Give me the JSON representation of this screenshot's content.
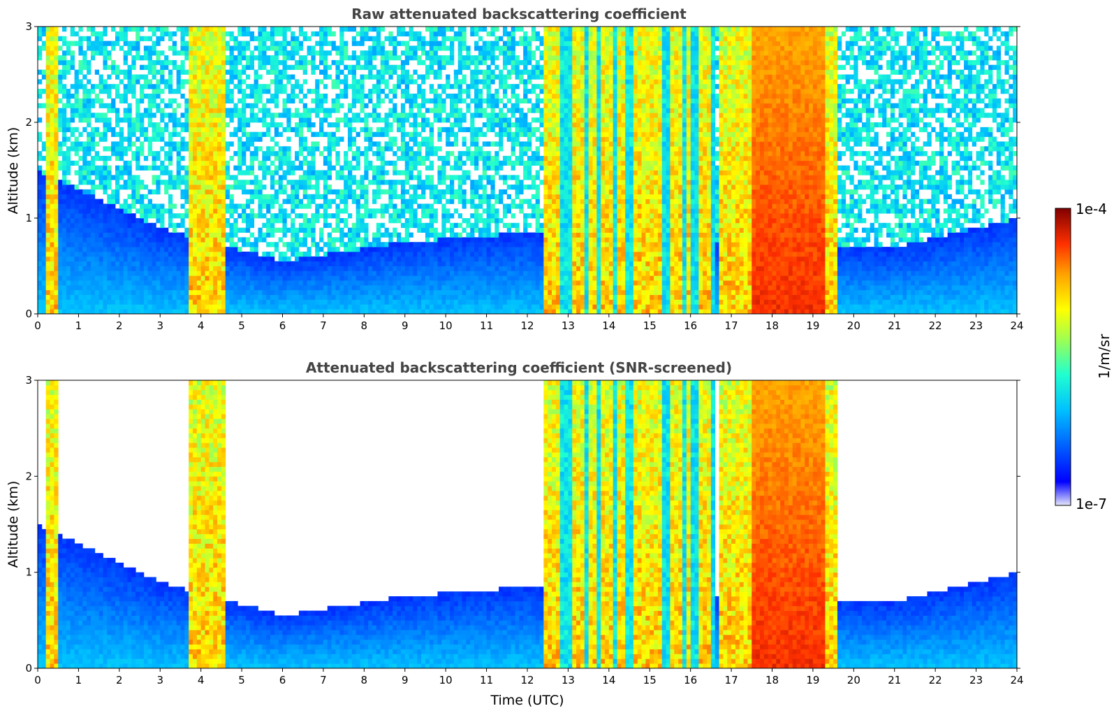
{
  "chart_data": [
    {
      "type": "heatmap",
      "title": "Raw attenuated backscattering coefficient",
      "xlabel": "",
      "ylabel": "Altitude (km)",
      "x_ticks": [
        "0",
        "1",
        "2",
        "3",
        "4",
        "5",
        "6",
        "7",
        "8",
        "9",
        "10",
        "11",
        "12",
        "13",
        "14",
        "15",
        "16",
        "17",
        "18",
        "19",
        "20",
        "21",
        "22",
        "23",
        "24"
      ],
      "y_ticks": [
        "0",
        "1",
        "2",
        "3"
      ],
      "xlim": [
        0,
        24
      ],
      "ylim": [
        0,
        3
      ],
      "x_units": "hours (UTC)",
      "y_units": "km",
      "screened": false
    },
    {
      "type": "heatmap",
      "title": "Attenuated backscattering coefficient (SNR-screened)",
      "xlabel": "Time (UTC)",
      "ylabel": "Altitude (km)",
      "x_ticks": [
        "0",
        "1",
        "2",
        "3",
        "4",
        "5",
        "6",
        "7",
        "8",
        "9",
        "10",
        "11",
        "12",
        "13",
        "14",
        "15",
        "16",
        "17",
        "18",
        "19",
        "20",
        "21",
        "22",
        "23",
        "24"
      ],
      "y_ticks": [
        "0",
        "1",
        "2",
        "3"
      ],
      "xlim": [
        0,
        24
      ],
      "ylim": [
        0,
        3
      ],
      "x_units": "hours (UTC)",
      "y_units": "km",
      "screened": true
    }
  ],
  "colorbar": {
    "label": "1/m/sr",
    "max_label": "1e-4",
    "min_label": "1e-7",
    "scale": "log",
    "range": [
      1e-07,
      0.0001
    ],
    "colormap": "jet",
    "colors": [
      "#e6e6fa",
      "#0000ff",
      "#0080ff",
      "#00e0ff",
      "#30ffc0",
      "#a0ff50",
      "#ffff00",
      "#ffa000",
      "#ff3000",
      "#a00000",
      "#700000"
    ]
  },
  "features": {
    "optically_thick_cloud_periods_utc": [
      [
        0.2,
        0.45
      ],
      [
        3.75,
        4.55
      ],
      [
        12.4,
        16.6
      ],
      [
        16.7,
        19.6
      ]
    ],
    "thick_cloud_core_utc": [
      17.5,
      19.3
    ],
    "aerosol_layer_top_km": {
      "0": 1.5,
      "3": 0.9,
      "6": 0.55,
      "9": 0.75,
      "12": 0.85,
      "21": 0.7,
      "24": 1.0
    }
  }
}
